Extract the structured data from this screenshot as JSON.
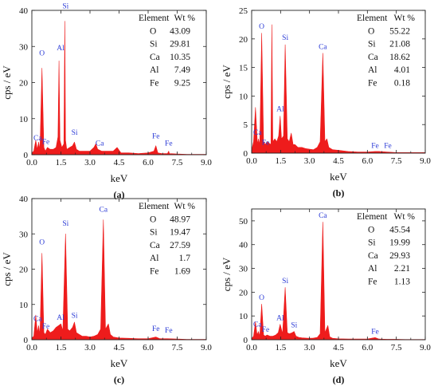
{
  "chart_data": [
    {
      "type": "area",
      "panel_label": "(a)",
      "xlabel": "keV",
      "ylabel": "cps / eV",
      "xlim": [
        0,
        9
      ],
      "ylim": [
        0,
        40
      ],
      "xticks": [
        "0.0",
        "1.5",
        "3.0",
        "4.5",
        "6.0",
        "7.5",
        "9.0"
      ],
      "yticks": [
        "0",
        "10",
        "20",
        "30",
        "40"
      ],
      "fill_color": "#ee1c1c",
      "label_color": "#2b3bd6",
      "x": [
        0.0,
        0.1,
        0.2,
        0.28,
        0.35,
        0.42,
        0.52,
        0.62,
        0.7,
        0.8,
        0.95,
        1.1,
        1.25,
        1.35,
        1.4,
        1.45,
        1.55,
        1.65,
        1.7,
        1.74,
        1.8,
        1.95,
        2.1,
        2.2,
        2.3,
        2.45,
        2.6,
        2.8,
        3.0,
        3.2,
        3.3,
        3.4,
        3.6,
        3.7,
        3.8,
        4.0,
        4.2,
        4.4,
        4.6,
        4.8,
        5.0,
        5.5,
        6.0,
        6.3,
        6.4,
        6.5,
        6.7,
        7.0,
        7.06,
        7.1,
        7.5,
        8.0,
        8.5,
        9.0
      ],
      "y": [
        0.5,
        1,
        4,
        1.5,
        3.5,
        1.5,
        24,
        2,
        1,
        2,
        1.5,
        1.5,
        2,
        5,
        26,
        4,
        2,
        3,
        37,
        4,
        1.5,
        2,
        2.5,
        3.5,
        1.5,
        1,
        1,
        1,
        1,
        2,
        3,
        1.5,
        1,
        1,
        1,
        1,
        1,
        2,
        0.5,
        0.5,
        0.5,
        0.3,
        0.5,
        1,
        2.5,
        0.5,
        0.3,
        0.3,
        1,
        0.3,
        0.2,
        0.1,
        0.1,
        0.1
      ],
      "peaks": [
        {
          "label": "Ca",
          "x": 0.3,
          "y": 4
        },
        {
          "label": "Fe",
          "x": 0.72,
          "y": 3
        },
        {
          "label": "O",
          "x": 0.52,
          "y": 27.5
        },
        {
          "label": "Al",
          "x": 1.48,
          "y": 29
        },
        {
          "label": "Si",
          "x": 1.74,
          "y": 40.5
        },
        {
          "label": "Si",
          "x": 2.2,
          "y": 5.5
        },
        {
          "label": "Ca",
          "x": 3.5,
          "y": 2.5
        },
        {
          "label": "Fe",
          "x": 6.4,
          "y": 4.5
        },
        {
          "label": "Fe",
          "x": 7.06,
          "y": 2.5
        }
      ],
      "table": {
        "headers": [
          "Element",
          "Wt %"
        ],
        "rows": [
          [
            "O",
            "43.09"
          ],
          [
            "Si",
            "29.81"
          ],
          [
            "Ca",
            "10.35"
          ],
          [
            "Al",
            "7.49"
          ],
          [
            "Fe",
            "9.25"
          ]
        ]
      }
    },
    {
      "type": "area",
      "panel_label": "(b)",
      "xlabel": "keV",
      "ylabel": "cps / eV",
      "xlim": [
        0,
        9
      ],
      "ylim": [
        0,
        25
      ],
      "xticks": [
        "0.0",
        "1.5",
        "3.0",
        "4.5",
        "6.0",
        "7.5",
        "9.0"
      ],
      "yticks": [
        "0",
        "5",
        "10",
        "15",
        "20",
        "25"
      ],
      "fill_color": "#ee1c1c",
      "label_color": "#2b3bd6",
      "x": [
        0.0,
        0.1,
        0.2,
        0.3,
        0.35,
        0.42,
        0.52,
        0.62,
        0.7,
        0.8,
        1.0,
        1.05,
        1.1,
        1.2,
        1.3,
        1.4,
        1.48,
        1.55,
        1.65,
        1.74,
        1.85,
        1.95,
        2.05,
        2.15,
        2.25,
        2.4,
        2.6,
        2.8,
        3.0,
        3.2,
        3.4,
        3.55,
        3.69,
        3.8,
        3.9,
        4.0,
        4.2,
        4.5,
        5.0,
        5.5,
        6.0,
        6.4,
        6.6,
        7.0,
        7.5,
        8.0,
        8.5,
        9.0
      ],
      "y": [
        0.5,
        2,
        8,
        1.5,
        2.5,
        1.5,
        21,
        2,
        1.5,
        2,
        1.5,
        22.5,
        2,
        2.5,
        2,
        3,
        6.5,
        2.5,
        3,
        19,
        2.5,
        2,
        3.5,
        1.5,
        1.5,
        1,
        1,
        0.8,
        0.7,
        0.6,
        1,
        2,
        17.5,
        2,
        2.5,
        1,
        0.6,
        0.5,
        0.3,
        0.2,
        0.2,
        0.3,
        0.3,
        0.2,
        0.1,
        0.1,
        0.1,
        0.1
      ],
      "peaks": [
        {
          "label": "Ca",
          "x": 0.3,
          "y": 3.2
        },
        {
          "label": "Fe",
          "x": 0.72,
          "y": 1.5
        },
        {
          "label": "O",
          "x": 0.52,
          "y": 21.8
        },
        {
          "label": "Al",
          "x": 1.48,
          "y": 7.3
        },
        {
          "label": "Si",
          "x": 1.74,
          "y": 19.8
        },
        {
          "label": "Ca",
          "x": 3.69,
          "y": 18.2
        },
        {
          "label": "Fe",
          "x": 6.4,
          "y": 0.9
        },
        {
          "label": "Fe",
          "x": 7.06,
          "y": 0.9
        }
      ],
      "table": {
        "headers": [
          "Element",
          "Wt %"
        ],
        "rows": [
          [
            "O",
            "55.22"
          ],
          [
            "Si",
            "21.08"
          ],
          [
            "Ca",
            "18.62"
          ],
          [
            "Al",
            "4.01"
          ],
          [
            "Fe",
            "0.18"
          ]
        ]
      }
    },
    {
      "type": "area",
      "panel_label": "(c)",
      "xlabel": "keV",
      "ylabel": "cps / eV",
      "xlim": [
        0,
        9
      ],
      "ylim": [
        0,
        40
      ],
      "xticks": [
        "0.0",
        "1.5",
        "3.0",
        "4.5",
        "6.0",
        "7.5",
        "9.0"
      ],
      "yticks": [
        "0",
        "10",
        "20",
        "30",
        "40"
      ],
      "fill_color": "#ee1c1c",
      "label_color": "#2b3bd6",
      "x": [
        0.0,
        0.1,
        0.2,
        0.28,
        0.35,
        0.42,
        0.52,
        0.62,
        0.7,
        0.8,
        0.95,
        1.1,
        1.25,
        1.38,
        1.5,
        1.6,
        1.74,
        1.85,
        1.95,
        2.1,
        2.2,
        2.3,
        2.45,
        2.6,
        2.8,
        3.0,
        3.2,
        3.4,
        3.55,
        3.69,
        3.8,
        3.95,
        4.05,
        4.2,
        4.5,
        5.0,
        5.5,
        6.0,
        6.4,
        6.6,
        7.0,
        7.5,
        8.0,
        8.5,
        9.0
      ],
      "y": [
        0.5,
        1,
        7,
        2,
        4,
        1.5,
        24.5,
        2,
        1.5,
        3,
        2,
        2.5,
        3.5,
        4,
        4.5,
        2.5,
        30,
        3,
        2.5,
        3.5,
        5,
        2,
        1.5,
        1,
        1,
        0.8,
        1,
        1.5,
        3,
        34,
        3,
        4.5,
        1.5,
        0.8,
        0.5,
        0.4,
        0.3,
        0.3,
        0.8,
        0.3,
        0.3,
        0.2,
        0.1,
        0.1,
        0.1
      ],
      "peaks": [
        {
          "label": "Ca",
          "x": 0.3,
          "y": 5.3
        },
        {
          "label": "Fe",
          "x": 0.72,
          "y": 3.2
        },
        {
          "label": "O",
          "x": 0.52,
          "y": 27
        },
        {
          "label": "Al",
          "x": 1.48,
          "y": 5.7
        },
        {
          "label": "Si",
          "x": 1.74,
          "y": 32.3
        },
        {
          "label": "Si",
          "x": 2.2,
          "y": 6.2
        },
        {
          "label": "Ca",
          "x": 3.69,
          "y": 36.3
        },
        {
          "label": "Fe",
          "x": 6.4,
          "y": 2.5
        },
        {
          "label": "Fe",
          "x": 7.06,
          "y": 2
        }
      ],
      "table": {
        "headers": [
          "Element",
          "Wt %"
        ],
        "rows": [
          [
            "O",
            "48.97"
          ],
          [
            "Si",
            "19.47"
          ],
          [
            "Ca",
            "27.59"
          ],
          [
            "Al",
            "1.7"
          ],
          [
            "Fe",
            "1.69"
          ]
        ]
      }
    },
    {
      "type": "area",
      "panel_label": "(d)",
      "xlabel": "keV",
      "ylabel": "cps / eV",
      "xlim": [
        0,
        9
      ],
      "ylim": [
        0,
        55
      ],
      "xticks": [
        "0.0",
        "1.5",
        "3.0",
        "4.5",
        "6.0",
        "7.5",
        "9.0"
      ],
      "yticks": [
        "0",
        "10",
        "20",
        "30",
        "40",
        "50"
      ],
      "fill_color": "#ee1c1c",
      "label_color": "#2b3bd6",
      "x": [
        0.0,
        0.1,
        0.2,
        0.28,
        0.35,
        0.42,
        0.52,
        0.62,
        0.7,
        0.8,
        0.95,
        1.1,
        1.25,
        1.38,
        1.48,
        1.6,
        1.74,
        1.85,
        1.95,
        2.1,
        2.2,
        2.3,
        2.45,
        2.6,
        2.8,
        3.0,
        3.2,
        3.4,
        3.55,
        3.69,
        3.8,
        3.95,
        4.05,
        4.2,
        4.5,
        5.0,
        5.5,
        6.0,
        6.4,
        6.6,
        7.0,
        7.5,
        8.0,
        8.5,
        9.0
      ],
      "y": [
        0.5,
        1.5,
        7.5,
        2,
        3.5,
        1.5,
        15,
        2,
        1.5,
        2,
        1.5,
        1.5,
        2,
        3,
        6.5,
        2.5,
        22,
        3,
        2.5,
        3,
        3.5,
        1.5,
        1,
        0.8,
        0.7,
        0.6,
        0.7,
        1,
        2.5,
        49.5,
        3,
        6,
        1.2,
        0.6,
        0.4,
        0.3,
        0.3,
        0.3,
        0.9,
        0.3,
        0.2,
        0.2,
        0.1,
        0.1,
        0.1
      ],
      "peaks": [
        {
          "label": "Ca",
          "x": 0.3,
          "y": 5.5
        },
        {
          "label": "Fe",
          "x": 0.72,
          "y": 3.3
        },
        {
          "label": "O",
          "x": 0.52,
          "y": 16.8
        },
        {
          "label": "Al",
          "x": 1.48,
          "y": 8.3
        },
        {
          "label": "Si",
          "x": 1.74,
          "y": 23.8
        },
        {
          "label": "Si",
          "x": 2.2,
          "y": 5.2
        },
        {
          "label": "Ca",
          "x": 3.69,
          "y": 51.3
        },
        {
          "label": "Fe",
          "x": 6.4,
          "y": 2.5
        }
      ],
      "table": {
        "headers": [
          "Element",
          "Wt %"
        ],
        "rows": [
          [
            "O",
            "45.54"
          ],
          [
            "Si",
            "19.99"
          ],
          [
            "Ca",
            "29.93"
          ],
          [
            "Al",
            "2.21"
          ],
          [
            "Fe",
            "1.13"
          ]
        ]
      }
    }
  ]
}
